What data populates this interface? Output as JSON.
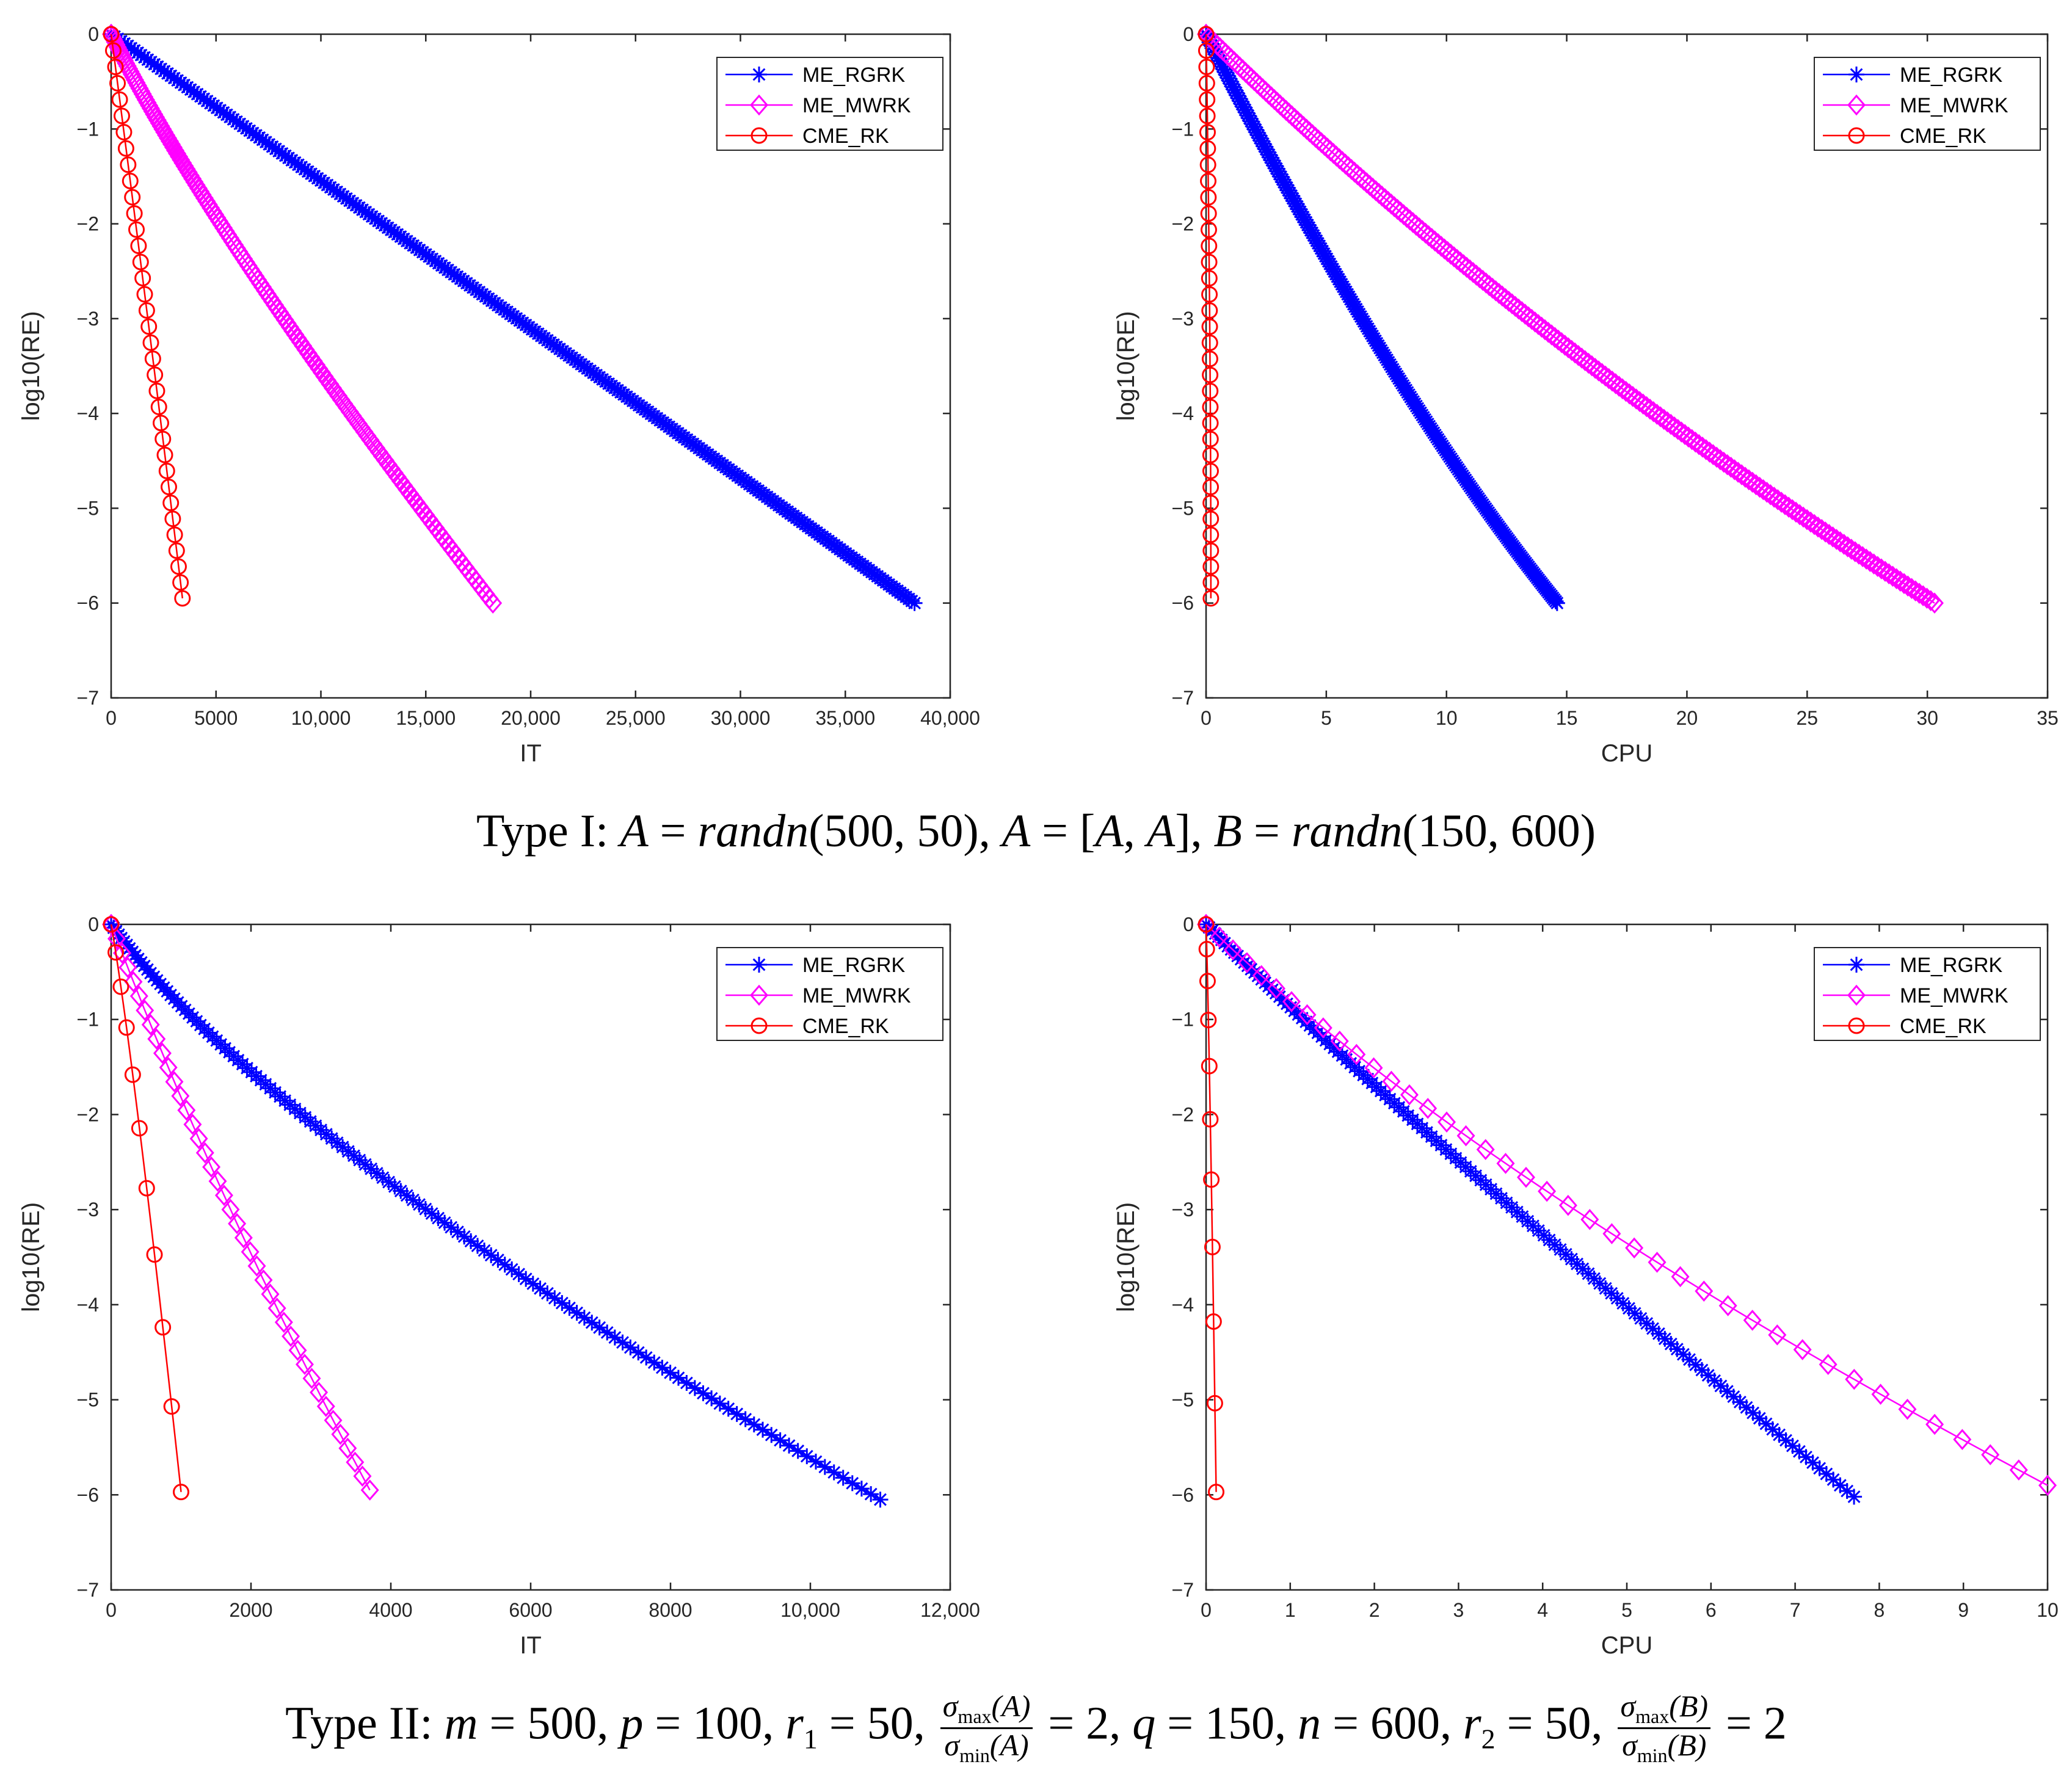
{
  "chart_data": [
    {
      "type": "line",
      "panel": "top-left",
      "xlabel": "IT",
      "ylabel": "log10(RE)",
      "xlim": [
        0,
        40000
      ],
      "ylim": [
        -7,
        0
      ],
      "xticks": [
        0,
        5000,
        10000,
        15000,
        20000,
        25000,
        30000,
        35000,
        40000
      ],
      "xtick_labels": [
        "0",
        "5000",
        "10,000",
        "15,000",
        "20,000",
        "25,000",
        "30,000",
        "35,000",
        "40,000"
      ],
      "yticks": [
        0,
        -1,
        -2,
        -3,
        -4,
        -5,
        -6,
        -7
      ],
      "ytick_labels": [
        "0",
        "−1",
        "−2",
        "−3",
        "−4",
        "−5",
        "−6",
        "−7"
      ],
      "legend_position": "top-right",
      "series": [
        {
          "name": "ME_RGRK",
          "color": "#0000ff",
          "marker": "star",
          "x": [
            0,
            20000,
            38300
          ],
          "y": [
            0,
            -3.1,
            -6.0
          ],
          "curve": 0.9,
          "markers": 260
        },
        {
          "name": "ME_MWRK",
          "color": "#ff00ff",
          "marker": "diamond",
          "x": [
            0,
            6000,
            18200
          ],
          "y": [
            0,
            -2.4,
            -6.0
          ],
          "curve": 0.68,
          "markers": 160
        },
        {
          "name": "CME_RK",
          "color": "#ff0000",
          "marker": "circle",
          "x": [
            0,
            1750,
            3400
          ],
          "y": [
            0,
            -3.0,
            -5.95
          ],
          "curve": 0.95,
          "markers": 35
        }
      ]
    },
    {
      "type": "line",
      "panel": "top-right",
      "xlabel": "CPU",
      "ylabel": "log10(RE)",
      "xlim": [
        0,
        35
      ],
      "ylim": [
        -7,
        0
      ],
      "xticks": [
        0,
        5,
        10,
        15,
        20,
        25,
        30,
        35
      ],
      "xtick_labels": [
        "0",
        "5",
        "10",
        "15",
        "20",
        "25",
        "30",
        "35"
      ],
      "yticks": [
        0,
        -1,
        -2,
        -3,
        -4,
        -5,
        -6,
        -7
      ],
      "ytick_labels": [
        "0",
        "−1",
        "−2",
        "−3",
        "−4",
        "−5",
        "−6",
        "−7"
      ],
      "legend_position": "top-right",
      "series": [
        {
          "name": "ME_RGRK",
          "color": "#0000ff",
          "marker": "star",
          "x": [
            0,
            7.5,
            14.6
          ],
          "y": [
            0,
            -3.7,
            -6.0
          ],
          "curve": 0.55,
          "markers": 240
        },
        {
          "name": "ME_MWRK",
          "color": "#ff00ff",
          "marker": "diamond",
          "x": [
            0,
            12.5,
            30.3
          ],
          "y": [
            0,
            -3.2,
            -6.0
          ],
          "curve": 0.45,
          "markers": 220
        },
        {
          "name": "CME_RK",
          "color": "#ff0000",
          "marker": "circle",
          "x": [
            0,
            0.15,
            0.2
          ],
          "y": [
            0,
            -3.0,
            -5.95
          ],
          "curve": 1,
          "markers": 35
        }
      ]
    },
    {
      "type": "line",
      "panel": "bottom-left",
      "xlabel": "IT",
      "ylabel": "log10(RE)",
      "xlim": [
        0,
        12000
      ],
      "ylim": [
        -7,
        0
      ],
      "xticks": [
        0,
        2000,
        4000,
        6000,
        8000,
        10000,
        12000
      ],
      "xtick_labels": [
        "0",
        "2000",
        "4000",
        "6000",
        "8000",
        "10,000",
        "12,000"
      ],
      "yticks": [
        0,
        -1,
        -2,
        -3,
        -4,
        -5,
        -6,
        -7
      ],
      "ytick_labels": [
        "0",
        "−1",
        "−2",
        "−3",
        "−4",
        "−5",
        "−6",
        "−7"
      ],
      "legend_position": "top-right",
      "series": [
        {
          "name": "ME_RGRK",
          "color": "#0000ff",
          "marker": "star",
          "x": [
            0,
            3600,
            11000
          ],
          "y": [
            0,
            -2.6,
            -6.05
          ],
          "curve": 0.85,
          "markers": 130
        },
        {
          "name": "ME_MWRK",
          "color": "#ff00ff",
          "marker": "diamond",
          "x": [
            0,
            1700,
            3700
          ],
          "y": [
            0,
            -3.0,
            -5.95
          ],
          "curve": 0.95,
          "markers": 40
        },
        {
          "name": "CME_RK",
          "color": "#ff0000",
          "marker": "circle",
          "x": [
            0,
            400,
            1000
          ],
          "y": [
            0,
            -2.1,
            -5.97
          ],
          "curve": 0.95,
          "markers": 10
        }
      ]
    },
    {
      "type": "line",
      "panel": "bottom-right",
      "xlabel": "CPU",
      "ylabel": "log10(RE)",
      "xlim": [
        0,
        10
      ],
      "ylim": [
        -7,
        0
      ],
      "xticks": [
        0,
        1,
        2,
        3,
        4,
        5,
        6,
        7,
        8,
        9,
        10
      ],
      "xtick_labels": [
        "0",
        "1",
        "2",
        "3",
        "4",
        "5",
        "6",
        "7",
        "8",
        "9",
        "10"
      ],
      "yticks": [
        0,
        -1,
        -2,
        -3,
        -4,
        -5,
        -6,
        -7
      ],
      "ytick_labels": [
        "0",
        "−1",
        "−2",
        "−3",
        "−4",
        "−5",
        "−6",
        "−7"
      ],
      "legend_position": "top-right",
      "series": [
        {
          "name": "ME_RGRK",
          "color": "#0000ff",
          "marker": "star",
          "x": [
            0,
            3.0,
            7.7
          ],
          "y": [
            0,
            -2.5,
            -6.02
          ],
          "curve": 0.9,
          "markers": 130
        },
        {
          "name": "ME_MWRK",
          "color": "#ff00ff",
          "marker": "diamond",
          "x": [
            0,
            4.0,
            10.0
          ],
          "y": [
            0,
            -2.8,
            -5.9
          ],
          "curve": 0.95,
          "markers": 40
        },
        {
          "name": "CME_RK",
          "color": "#ff0000",
          "marker": "circle",
          "x": [
            0,
            0.05,
            0.12
          ],
          "y": [
            0,
            -2.05,
            -5.97
          ],
          "curve": 1,
          "markers": 10
        }
      ]
    }
  ],
  "captions": {
    "type1": {
      "label": "Type I: ",
      "A_def": "A",
      "eq1": " = ",
      "randn1": "randn",
      "args1": "(500, 50)",
      "sep1": ", ",
      "A2": "A",
      "eq2": " = [",
      "A3": "A",
      "comma": ", ",
      "A4": "A",
      "close": "], ",
      "B": "B",
      "eq3": " = ",
      "randn2": "randn",
      "args2": "(150, 600)"
    },
    "type2": {
      "label": "Type II: ",
      "m": "m",
      "m_val": " = 500, ",
      "p": "p",
      "p_val": " = 100, ",
      "r": "r",
      "r1_sub": "1",
      "r1_val": " = 50, ",
      "sigma": "σ",
      "max": "max",
      "min": "min",
      "argA": "(A)",
      "argB": "(B)",
      "ratioA_val": " = 2, ",
      "q": "q",
      "q_val": " = 150, ",
      "n": "n",
      "n_val": " = 600, ",
      "r2_sub": "2",
      "r2_val": " = 50, ",
      "ratioB_val": " = 2"
    }
  }
}
